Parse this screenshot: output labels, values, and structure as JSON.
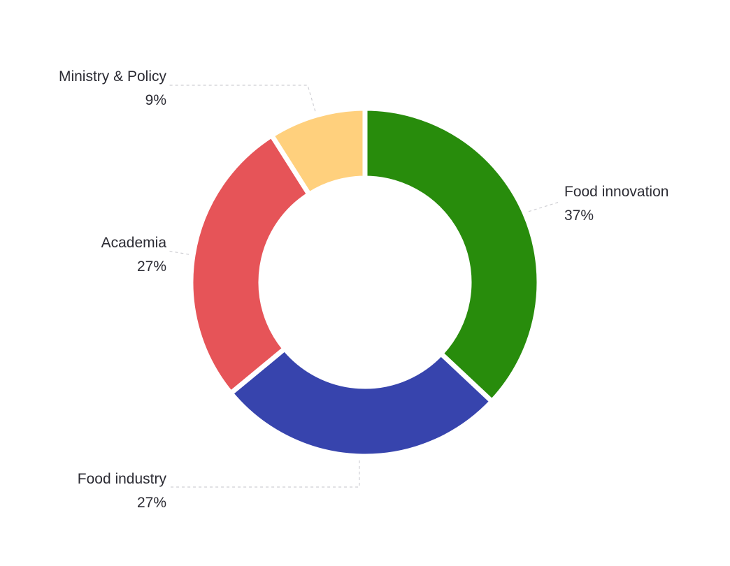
{
  "chart_data": {
    "type": "pie",
    "variant": "donut",
    "categories": [
      "Food innovation",
      "Food industry",
      "Academia",
      "Ministry & Policy"
    ],
    "values": [
      37,
      27,
      27,
      9
    ],
    "labels": [
      "37%",
      "27%",
      "27%",
      "9%"
    ],
    "colors": [
      "#288c0c",
      "#3744ad",
      "#e65458",
      "#ffd07d"
    ],
    "legend": "none"
  }
}
